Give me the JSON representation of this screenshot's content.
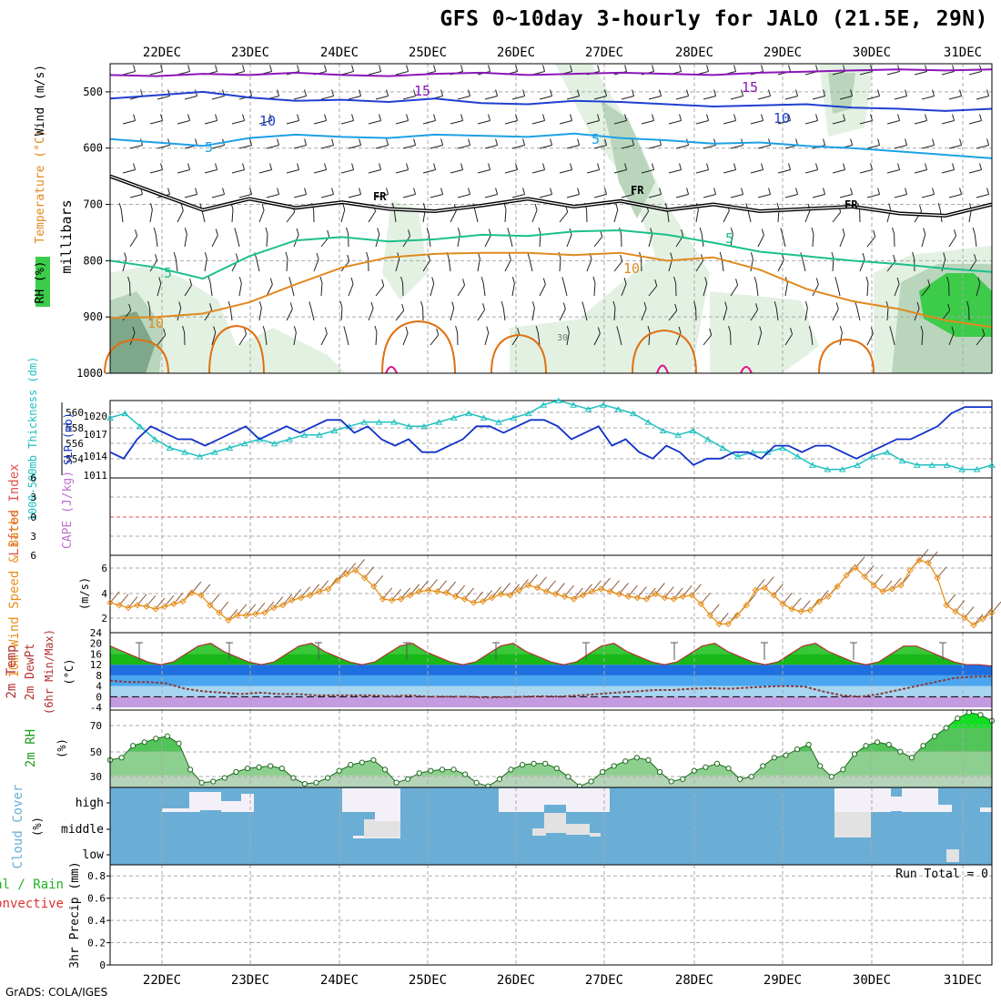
{
  "title": "GFS 0~10day 3-hourly for JALO (21.5E, 29N)",
  "footer": "GrADS: COLA/IGES",
  "colors": {
    "purple": "#8a17b7",
    "blue": "#1f3fd0",
    "lightblue": "#1ea0e6",
    "teal": "#1cc08a",
    "orange": "#e08a1e",
    "darkorange": "#e07010",
    "magenta": "#e0108a",
    "black": "#000000",
    "rhdark": "#7fa88a",
    "rhmid": "#b9d6bc",
    "rhlight": "#e3f1e3",
    "rhbright": "#3ccc4a",
    "slp": "#1030c8",
    "thick": "#20c0c0",
    "wind10": "#e8901c",
    "barb10": "#8b5a3c",
    "tempgreen": "#18b818",
    "dewpt": "#8b3a3a",
    "cloud": "#6aaed6",
    "cloudwhite": "#f4f0f8",
    "cloudgray": "#e2e2e2",
    "rhfill": "#30b030",
    "cape": "#e05050"
  },
  "chart_data": [
    {
      "type": "contour",
      "panel": "upper-air",
      "xlabels": [
        "22DEC",
        "23DEC",
        "24DEC",
        "25DEC",
        "26DEC",
        "27DEC",
        "28DEC",
        "29DEC",
        "30DEC",
        "31DEC"
      ],
      "ylabel": "millibars",
      "legend": [
        "RH (%)",
        "Temperature (°C)",
        "Wind (m/s)"
      ],
      "yticks": [
        500,
        600,
        700,
        800,
        900,
        1000
      ],
      "ylim": [
        450,
        1000
      ],
      "freezing_label": "FR",
      "rh_label": "30",
      "contour_labels": [
        "15",
        "15",
        "10",
        "10",
        "5",
        "5",
        "5",
        "5",
        "10",
        "10"
      ],
      "temp_contours": [
        {
          "name": "15",
          "color": "purple",
          "p": [
            470,
            472,
            468,
            470,
            466,
            470,
            472,
            468,
            466,
            470,
            468,
            466,
            468,
            470,
            466,
            464,
            462,
            460,
            462,
            460
          ]
        },
        {
          "name": "10",
          "color": "blue",
          "p": [
            512,
            506,
            500,
            510,
            516,
            514,
            518,
            512,
            520,
            522,
            516,
            518,
            522,
            526,
            524,
            522,
            528,
            530,
            534,
            530
          ]
        },
        {
          "name": "5a",
          "color": "lightblue",
          "p": [
            584,
            590,
            596,
            582,
            576,
            580,
            582,
            576,
            578,
            580,
            574,
            582,
            586,
            592,
            590,
            596,
            600,
            606,
            612,
            618
          ]
        },
        {
          "name": "FR",
          "color": "black",
          "p": [
            650,
            680,
            710,
            690,
            706,
            696,
            708,
            712,
            702,
            690,
            704,
            694,
            710,
            700,
            712,
            708,
            704,
            716,
            720,
            700
          ]
        },
        {
          "name": "5b",
          "color": "teal",
          "p": [
            800,
            812,
            832,
            792,
            764,
            758,
            766,
            762,
            754,
            756,
            748,
            746,
            754,
            768,
            784,
            792,
            800,
            806,
            814,
            820
          ]
        },
        {
          "name": "10",
          "color": "orange",
          "p": [
            902,
            900,
            894,
            874,
            842,
            812,
            794,
            788,
            786,
            786,
            790,
            786,
            800,
            794,
            816,
            850,
            872,
            886,
            906,
            918
          ]
        }
      ]
    },
    {
      "type": "line",
      "panel": "thickness-slp",
      "xlabels": [
        "22DEC",
        "23DEC",
        "24DEC",
        "25DEC",
        "26DEC",
        "27DEC",
        "28DEC",
        "29DEC",
        "30DEC",
        "31DEC"
      ],
      "ylabel_left": "1000-500mb Thickness (dm)",
      "ylabel_right": "SLP (mb)",
      "left_ticks": [
        "560",
        "558",
        "556",
        "554"
      ],
      "right_ticks": [
        "1020",
        "1017",
        "1014",
        "1011"
      ],
      "series": [
        {
          "name": "SLP (mb)",
          "unit": "mb",
          "values": [
            1014,
            1013,
            1016,
            1018,
            1017,
            1016,
            1016,
            1015,
            1016,
            1017,
            1018,
            1016,
            1017,
            1018,
            1017,
            1018,
            1019,
            1019,
            1017,
            1018,
            1016,
            1015,
            1016,
            1014,
            1014,
            1015,
            1016,
            1018,
            1018,
            1017,
            1018,
            1019,
            1019,
            1018,
            1016,
            1017,
            1018,
            1015,
            1016,
            1014,
            1013,
            1015,
            1014,
            1012,
            1013,
            1013,
            1014,
            1014,
            1013,
            1015,
            1015,
            1014,
            1015,
            1015,
            1014,
            1013,
            1014,
            1015,
            1016,
            1016,
            1017,
            1018,
            1020,
            1021,
            1021,
            1021
          ]
        },
        {
          "name": "1000-500mb Thickness (dm)",
          "unit": "dm",
          "values": [
            559.5,
            560,
            558.5,
            557,
            556,
            555.5,
            555,
            555.5,
            556,
            556.5,
            557,
            556.5,
            557,
            557.5,
            557.5,
            558,
            558.5,
            559,
            559,
            559,
            558.5,
            558.5,
            559,
            559.5,
            560,
            559.5,
            559,
            559.5,
            560,
            561,
            561.5,
            561,
            560.5,
            561,
            560.5,
            560,
            559,
            558,
            557.5,
            558,
            557,
            556,
            555,
            555.5,
            555.5,
            556,
            555,
            554,
            553.5,
            553.5,
            554,
            555,
            555.5,
            554.5,
            554,
            554,
            554,
            553.5,
            553.5,
            554
          ]
        }
      ]
    },
    {
      "type": "line",
      "panel": "lifted-cape",
      "ylabel_left": "Lifted Index",
      "ylabel_right": "CAPE (J/kg)",
      "yticks": [
        "6",
        "3",
        "0",
        "3",
        "6"
      ],
      "series": [
        {
          "name": "Lifted Index",
          "values": [
            0,
            0,
            0,
            0,
            0,
            0,
            0,
            0,
            0,
            0
          ]
        }
      ]
    },
    {
      "type": "line",
      "panel": "wind10",
      "ylabel_left": "10m Wind Speed & Barbs",
      "unit": "(m/s)",
      "yticks": [
        "6",
        "4",
        "2"
      ],
      "ylim": [
        1,
        7
      ],
      "series": [
        {
          "name": "10m Wind Speed (m/s)",
          "values": [
            3.2,
            3,
            2.8,
            3,
            2.9,
            2.7,
            2.9,
            3.1,
            3.3,
            4,
            3.8,
            3,
            2.4,
            1.8,
            2.2,
            2.2,
            2.3,
            2.4,
            2.8,
            3,
            3.4,
            3.6,
            3.8,
            4.1,
            4.3,
            5,
            5.5,
            5.8,
            5.2,
            4.5,
            3.5,
            3.4,
            3.5,
            3.8,
            4.1,
            4.2,
            4.1,
            4,
            3.7,
            3.5,
            3.2,
            3.3,
            3.6,
            3.9,
            3.8,
            4.2,
            4.6,
            4.4,
            4.1,
            3.9,
            3.7,
            3.5,
            3.8,
            4.1,
            4.3,
            4.1,
            3.9,
            3.7,
            3.6,
            3.5,
            3.9,
            3.6,
            3.5,
            3.7,
            3.8,
            3.1,
            2.2,
            1.5,
            1.5,
            2.2,
            3,
            4.2,
            4.4,
            3.8,
            3.1,
            2.7,
            2.5,
            2.6,
            3.3,
            3.7,
            4.5,
            5.4,
            6,
            5.3,
            4.6,
            4.1,
            4.3,
            4.6,
            5.8,
            6.6,
            6.4,
            5.2,
            3,
            2.5,
            2,
            1.4,
            1.9,
            2.4
          ]
        }
      ]
    },
    {
      "type": "area",
      "panel": "temp2m",
      "ylabel_left": "2m Temp 2m DewPt (6hr Min/Max)",
      "unit": "(°C)",
      "yticks": [
        "24",
        "20",
        "16",
        "12",
        "8",
        "4",
        "0",
        "-4"
      ],
      "ylim": [
        -4,
        24
      ],
      "series": [
        {
          "name": "2m Temp (°C)",
          "values": [
            19,
            17,
            15,
            13,
            12,
            13,
            16,
            19,
            20,
            17,
            15,
            13,
            12,
            13,
            16,
            19,
            20,
            17,
            15,
            13,
            12,
            13,
            16,
            19,
            20,
            17,
            15,
            13,
            12,
            13,
            16,
            19,
            20,
            17,
            15,
            13,
            12,
            13,
            16,
            19,
            20,
            17,
            15,
            13,
            12,
            13,
            16,
            19,
            20,
            17,
            15,
            13,
            12,
            13,
            16,
            19,
            20,
            17,
            15,
            13,
            12,
            13,
            16,
            19,
            19,
            17,
            15,
            13,
            12,
            12,
            11.5
          ]
        },
        {
          "name": "2m DewPt (°C)",
          "values": [
            6,
            5.5,
            5.5,
            5,
            3,
            2,
            1.5,
            1,
            1.5,
            1,
            1,
            0.5,
            0.5,
            0.5,
            0.5,
            0.2,
            0.5,
            0,
            0,
            0,
            -0.3,
            -0.2,
            0,
            0.2,
            0.1,
            0.5,
            1,
            1.5,
            2,
            2.5,
            2.5,
            3,
            3.2,
            3,
            3.4,
            3.8,
            4,
            3.8,
            2,
            0.5,
            0,
            1,
            2.5,
            4,
            5.5,
            7,
            7.5,
            7.6
          ]
        }
      ]
    },
    {
      "type": "area",
      "panel": "rh2m",
      "ylabel_left": "2m RH",
      "unit": "(%)",
      "yticks": [
        "70",
        "50",
        "30"
      ],
      "ylim": [
        20,
        85
      ],
      "series": [
        {
          "name": "2m RH (%)",
          "values": [
            43,
            45,
            55,
            58,
            61,
            63,
            57,
            35,
            24,
            25,
            28,
            33,
            36,
            37,
            38,
            36,
            28,
            23,
            24,
            28,
            34,
            39,
            41,
            43,
            35,
            24,
            27,
            32,
            34,
            35,
            35,
            31,
            24,
            21,
            27,
            35,
            39,
            40,
            40,
            36,
            29,
            21,
            25,
            33,
            38,
            42,
            45,
            43,
            33,
            25,
            27,
            34,
            37,
            40,
            36,
            27,
            29,
            38,
            45,
            47,
            52,
            56,
            38,
            29,
            35,
            48,
            55,
            58,
            56,
            50,
            45,
            55,
            63,
            70,
            78,
            83,
            81,
            76
          ]
        }
      ]
    },
    {
      "type": "heatmap",
      "panel": "cloud",
      "ylabel_left": "Cloud Cover",
      "unit": "(%)",
      "ylevels": [
        "high",
        "middle",
        "low"
      ]
    },
    {
      "type": "bar",
      "panel": "precip",
      "ylabel_left": "Total / Rain Convective",
      "unit": "3hr Precip (mm)",
      "run_total_label": "Run Total = 0",
      "yticks": [
        "0.8",
        "0.6",
        "0.4",
        "0.2",
        "0"
      ],
      "ylim": [
        0,
        0.9
      ],
      "xlabels": [
        "22DEC",
        "23DEC",
        "24DEC",
        "25DEC",
        "26DEC",
        "27DEC",
        "28DEC",
        "29DEC",
        "30DEC",
        "31DEC"
      ],
      "values": [
        0,
        0,
        0,
        0,
        0,
        0,
        0,
        0,
        0,
        0
      ]
    }
  ]
}
